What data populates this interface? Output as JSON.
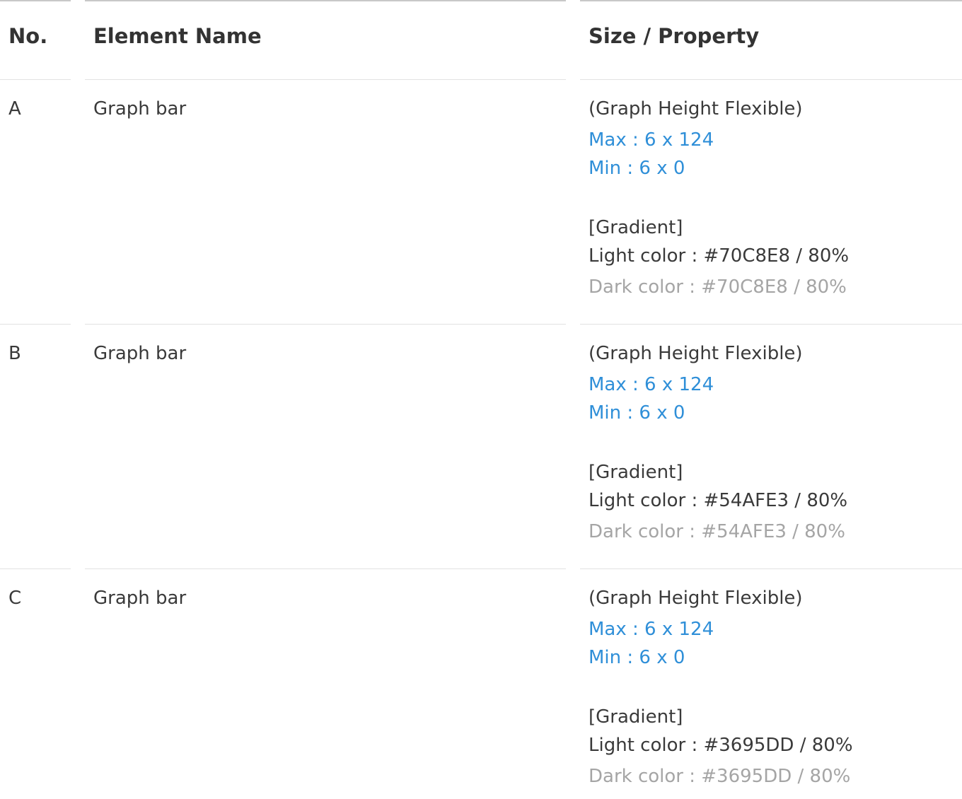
{
  "header": {
    "no": "No.",
    "element_name": "Element Name",
    "size_property": "Size / Property"
  },
  "rows": [
    {
      "no": "A",
      "name": "Graph bar",
      "height_note": "(Graph Height Flexible)",
      "max": "Max  : 6 x 124",
      "min": "Min : 6 x 0",
      "gradient_label": "[Gradient]",
      "light_color": "Light color : #70C8E8 / 80%",
      "dark_color": "Dark color : #70C8E8 / 80%"
    },
    {
      "no": "B",
      "name": "Graph bar",
      "height_note": "(Graph Height Flexible)",
      "max": "Max  : 6 x 124",
      "min": "Min : 6 x 0",
      "gradient_label": "[Gradient]",
      "light_color": "Light color : #54AFE3 / 80%",
      "dark_color": "Dark color : #54AFE3 / 80%"
    },
    {
      "no": "C",
      "name": "Graph bar",
      "height_note": "(Graph Height Flexible)",
      "max": "Max  : 6 x 124",
      "min": "Min : 6 x 0",
      "gradient_label": "[Gradient]",
      "light_color": "Light color : #3695DD / 80%",
      "dark_color": "Dark color : #3695DD / 80%"
    }
  ],
  "colors": {
    "size_value": "#2f8fd8",
    "dark_color_text": "#a5a5a5",
    "body_text": "#3a3a3a"
  }
}
